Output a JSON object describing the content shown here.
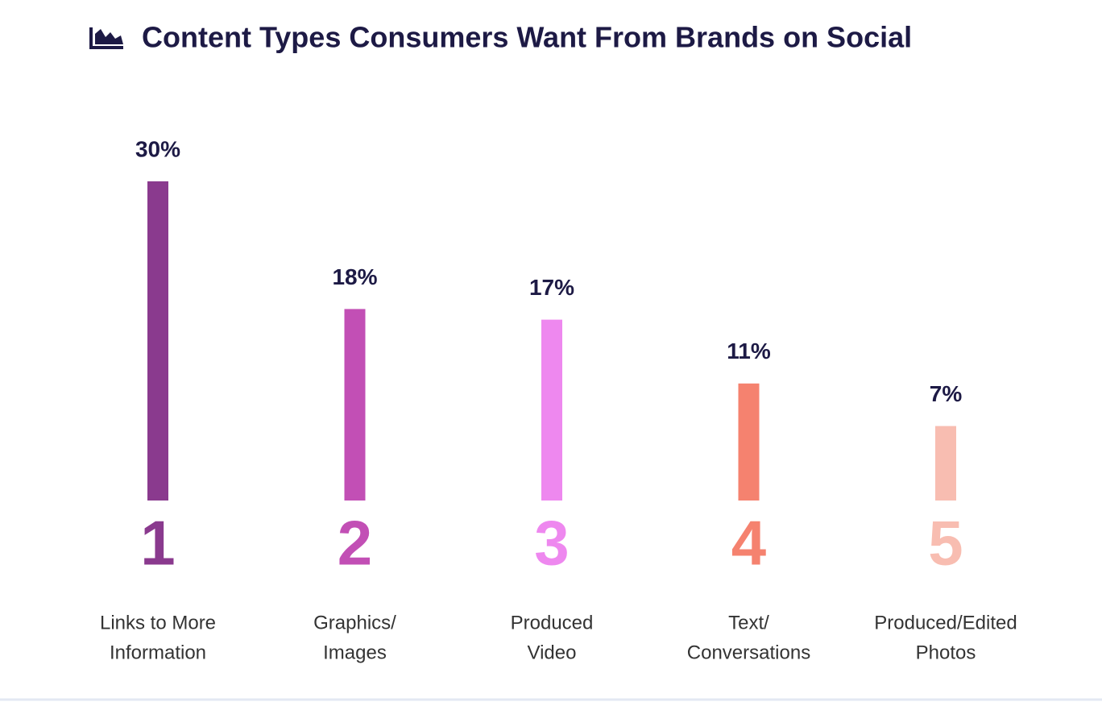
{
  "chart_data": {
    "type": "bar",
    "title": "Content Types Consumers Want From Brands on Social",
    "categories": [
      [
        "Links to More",
        "Information"
      ],
      [
        "Graphics/",
        "Images"
      ],
      [
        "Produced",
        "Video"
      ],
      [
        "Text/",
        "Conversations"
      ],
      [
        "Produced/Edited",
        "Photos"
      ]
    ],
    "ranks": [
      1,
      2,
      3,
      4,
      5
    ],
    "values": [
      30,
      18,
      17,
      11,
      7
    ],
    "value_labels": [
      "30%",
      "18%",
      "17%",
      "11%",
      "7%"
    ],
    "colors": [
      "#8a3a8e",
      "#c24fb5",
      "#ee88ef",
      "#f5826f",
      "#f8bdb1"
    ]
  }
}
